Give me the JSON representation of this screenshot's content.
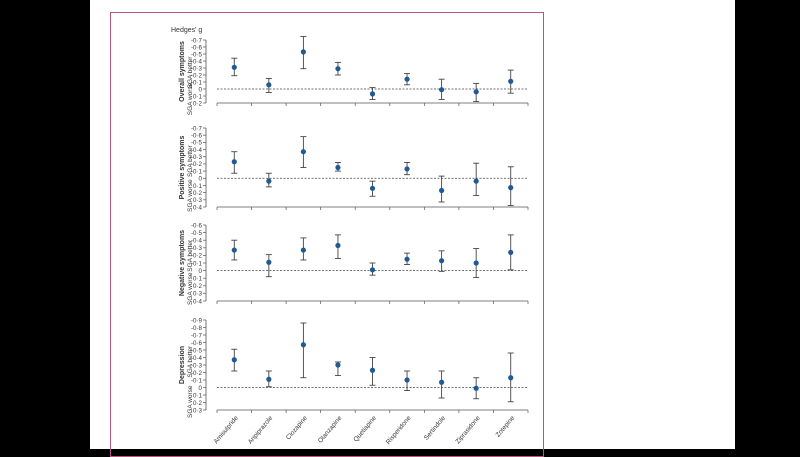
{
  "chart_data": [
    {
      "type": "scatter",
      "panel": "Overall symptoms",
      "better_label": "SGA better",
      "worse_label": "SGA worse",
      "ylabel": "Hedges' g",
      "ylim": [
        -0.7,
        0.2
      ],
      "yticks": [
        "-0·7",
        "-0·6",
        "-0·5",
        "-0·4",
        "-0·3",
        "-0·2",
        "-0·1",
        "0",
        "0·1",
        "0·2"
      ],
      "categories": [
        "Amisulpride",
        "Aripiprazole",
        "Clozapine",
        "Olanzapine",
        "Quetiapine",
        "Risperidone",
        "Sertindole",
        "Ziprasidone",
        "Zotepine"
      ],
      "values": [
        -0.31,
        -0.06,
        -0.53,
        -0.29,
        0.07,
        -0.14,
        0.01,
        0.04,
        -0.11
      ],
      "ci_low": [
        -0.44,
        -0.15,
        -0.75,
        -0.38,
        -0.02,
        -0.22,
        -0.14,
        -0.08,
        -0.27
      ],
      "ci_high": [
        -0.19,
        0.05,
        -0.29,
        -0.2,
        0.15,
        -0.06,
        0.15,
        0.18,
        0.06
      ],
      "reference_line": 0
    },
    {
      "type": "scatter",
      "panel": "Positive symptoms",
      "better_label": "SGA better",
      "worse_label": "SGA worse",
      "ylim": [
        -0.7,
        0.4
      ],
      "yticks": [
        "-0·7",
        "-0·6",
        "-0·5",
        "-0·4",
        "-0·3",
        "-0·2",
        "-0·1",
        "0",
        "0·1",
        "0·2",
        "0·3",
        "0·4"
      ],
      "categories": [
        "Amisulpride",
        "Aripiprazole",
        "Clozapine",
        "Olanzapine",
        "Quetiapine",
        "Risperidone",
        "Sertindole",
        "Ziprasidone",
        "Zotepine"
      ],
      "values": [
        -0.23,
        0.04,
        -0.37,
        -0.15,
        0.14,
        -0.13,
        0.17,
        0.04,
        0.13
      ],
      "ci_low": [
        -0.37,
        -0.07,
        -0.58,
        -0.22,
        0.04,
        -0.22,
        -0.03,
        -0.21,
        -0.16
      ],
      "ci_high": [
        -0.07,
        0.12,
        -0.15,
        -0.1,
        0.25,
        -0.05,
        0.33,
        0.24,
        0.38
      ],
      "reference_line": 0
    },
    {
      "type": "scatter",
      "panel": "Negative symptoms",
      "better_label": "SGA better",
      "worse_label": "SGA worse",
      "ylim": [
        -0.6,
        0.4
      ],
      "yticks": [
        "-0·6",
        "-0·5",
        "-0·4",
        "-0·3",
        "-0·2",
        "-0·1",
        "0",
        "0·1",
        "0·2",
        "0·3",
        "0·4"
      ],
      "categories": [
        "Amisulpride",
        "Aripiprazole",
        "Clozapine",
        "Olanzapine",
        "Quetiapine",
        "Risperidone",
        "Sertindole",
        "Ziprasidone",
        "Zotepine"
      ],
      "values": [
        -0.27,
        -0.11,
        -0.27,
        -0.33,
        -0.01,
        -0.15,
        -0.13,
        -0.1,
        -0.24
      ],
      "ci_low": [
        -0.4,
        -0.21,
        -0.43,
        -0.47,
        -0.1,
        -0.23,
        -0.26,
        -0.29,
        -0.47
      ],
      "ci_high": [
        -0.14,
        0.08,
        -0.14,
        -0.16,
        0.06,
        -0.08,
        0.01,
        0.09,
        -0.01
      ],
      "reference_line": 0
    },
    {
      "type": "scatter",
      "panel": "Depression",
      "better_label": "SGA better",
      "worse_label": "SGA worse",
      "ylim": [
        -0.9,
        0.3
      ],
      "yticks": [
        "-0·9",
        "-0·8",
        "-0·7",
        "-0·6",
        "-0·5",
        "-0·4",
        "-0·3",
        "-0·2",
        "-0·1",
        "0",
        "0·1",
        "0·2",
        "0·3"
      ],
      "categories": [
        "Amisulpride",
        "Aripiprazole",
        "Clozapine",
        "Olanzapine",
        "Quetiapine",
        "Risperidone",
        "Sertindole",
        "Ziprasidone",
        "Zotepine"
      ],
      "values": [
        -0.37,
        -0.11,
        -0.57,
        -0.3,
        -0.23,
        -0.1,
        -0.07,
        0.01,
        -0.13
      ],
      "ci_low": [
        -0.51,
        -0.22,
        -0.86,
        -0.34,
        -0.4,
        -0.22,
        -0.22,
        -0.13,
        -0.46
      ],
      "ci_high": [
        -0.22,
        -0.01,
        -0.13,
        -0.16,
        -0.03,
        0.04,
        0.14,
        0.15,
        0.19
      ],
      "reference_line": 0
    }
  ],
  "colors": {
    "point": "#1f5a96",
    "whisker": "#444444",
    "frame": "#b5577f"
  }
}
